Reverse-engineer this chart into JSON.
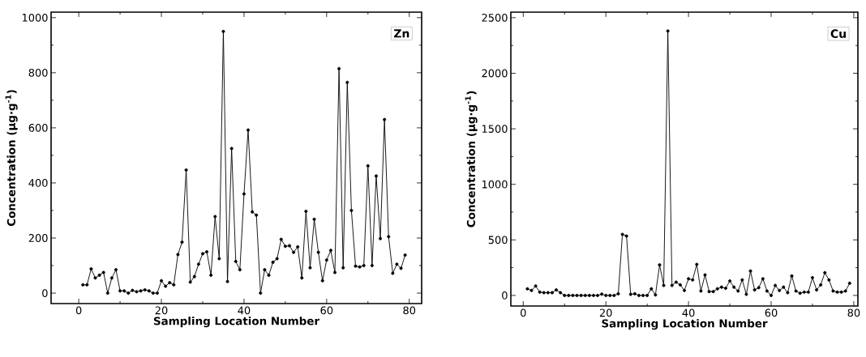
{
  "chart_data": [
    {
      "type": "line",
      "xlabel": "Sampling Location Number",
      "ylabel": "Concentration  (μg·g$^{-1}$)",
      "annotations": [
        "Zn"
      ],
      "x": [
        1,
        2,
        3,
        4,
        5,
        6,
        7,
        8,
        9,
        10,
        11,
        12,
        13,
        14,
        15,
        16,
        17,
        18,
        19,
        20,
        21,
        22,
        23,
        24,
        25,
        26,
        27,
        28,
        29,
        30,
        31,
        32,
        33,
        34,
        35,
        36,
        37,
        38,
        39,
        40,
        41,
        42,
        43,
        44,
        45,
        46,
        47,
        48,
        49,
        50,
        51,
        52,
        53,
        54,
        55,
        56,
        57,
        58,
        59,
        60,
        61,
        62,
        63,
        64,
        65,
        66,
        67,
        68,
        69,
        70,
        71,
        72,
        73,
        74,
        75,
        76,
        77,
        78,
        79
      ],
      "series": [
        {
          "color": "#000000",
          "values": [
            30,
            30,
            88,
            55,
            65,
            75,
            0,
            55,
            85,
            8,
            8,
            0,
            10,
            5,
            8,
            12,
            8,
            0,
            0,
            45,
            25,
            38,
            30,
            140,
            185,
            447,
            40,
            60,
            105,
            143,
            150,
            65,
            278,
            125,
            950,
            42,
            525,
            115,
            85,
            360,
            592,
            295,
            283,
            0,
            85,
            65,
            112,
            125,
            195,
            170,
            172,
            148,
            168,
            55,
            297,
            92,
            268,
            148,
            45,
            120,
            155,
            75,
            815,
            92,
            765,
            300,
            98,
            95,
            100,
            462,
            100,
            425,
            198,
            630,
            205,
            72,
            105,
            90,
            138
          ]
        }
      ],
      "xlim": [
        -6.7,
        83
      ],
      "ylim": [
        -38,
        1020
      ],
      "xticks": [
        0,
        20,
        40,
        60,
        80
      ],
      "yticks": [
        0,
        200,
        400,
        600,
        800,
        1000
      ],
      "marker": "circle",
      "line_style": "solid"
    },
    {
      "type": "line",
      "xlabel": "Sampling Location Number",
      "ylabel": "Concentration  (μg·g$^{-1}$)",
      "annotations": [
        "Cu"
      ],
      "x": [
        1,
        2,
        3,
        4,
        5,
        6,
        7,
        8,
        9,
        10,
        11,
        12,
        13,
        14,
        15,
        16,
        17,
        18,
        19,
        20,
        21,
        22,
        23,
        24,
        25,
        26,
        27,
        28,
        29,
        30,
        31,
        32,
        33,
        34,
        35,
        36,
        37,
        38,
        39,
        40,
        41,
        42,
        43,
        44,
        45,
        46,
        47,
        48,
        49,
        50,
        51,
        52,
        53,
        54,
        55,
        56,
        57,
        58,
        59,
        60,
        61,
        62,
        63,
        64,
        65,
        66,
        67,
        68,
        69,
        70,
        71,
        72,
        73,
        74,
        75,
        76,
        77,
        78,
        79
      ],
      "series": [
        {
          "color": "#000000",
          "values": [
            60,
            45,
            85,
            30,
            25,
            25,
            25,
            50,
            25,
            0,
            0,
            0,
            0,
            0,
            0,
            0,
            0,
            0,
            12,
            0,
            0,
            0,
            15,
            550,
            535,
            10,
            15,
            0,
            0,
            0,
            60,
            5,
            275,
            90,
            2380,
            90,
            120,
            95,
            45,
            150,
            140,
            280,
            40,
            185,
            35,
            35,
            60,
            75,
            65,
            130,
            75,
            40,
            140,
            10,
            220,
            50,
            70,
            150,
            40,
            0,
            90,
            45,
            75,
            25,
            175,
            40,
            20,
            30,
            30,
            160,
            50,
            95,
            205,
            140,
            40,
            30,
            30,
            40,
            110
          ]
        }
      ],
      "xlim": [
        -3,
        81
      ],
      "ylim": [
        -95,
        2550
      ],
      "xticks": [
        0,
        20,
        40,
        60,
        80
      ],
      "yticks": [
        0,
        500,
        1000,
        1500,
        2000,
        2500
      ],
      "marker": "circle",
      "line_style": "solid"
    }
  ]
}
